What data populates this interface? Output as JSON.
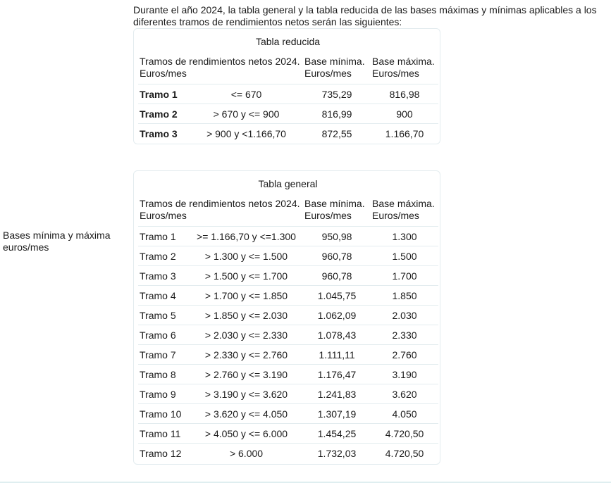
{
  "side_label": "Bases mínima y máxima euros/mes",
  "intro": "Durante el año 2024, la tabla general y la tabla reducida de las bases máximas y mínimas aplicables a los diferentes tramos de rendimientos netos serán las siguientes:",
  "headers": {
    "tramos": "Tramos de rendimientos netos 2024. Euros/mes",
    "min": "Base mínima. Euros/mes",
    "max": "Base máxima. Euros/mes"
  },
  "reducida": {
    "title": "Tabla reducida",
    "rows": [
      {
        "tramo": "Tramo 1",
        "range": "<= 670",
        "min": "735,29",
        "max": "816,98"
      },
      {
        "tramo": "Tramo 2",
        "range": "> 670 y <= 900",
        "min": "816,99",
        "max": "900"
      },
      {
        "tramo": "Tramo 3",
        "range": "> 900 y <1.166,70",
        "min": "872,55",
        "max": "1.166,70"
      }
    ]
  },
  "general": {
    "title": "Tabla general",
    "rows": [
      {
        "tramo": "Tramo 1",
        "range": ">= 1.166,70 y <=1.300",
        "min": "950,98",
        "max": "1.300"
      },
      {
        "tramo": "Tramo 2",
        "range": "> 1.300 y <= 1.500",
        "min": "960,78",
        "max": "1.500"
      },
      {
        "tramo": "Tramo 3",
        "range": "> 1.500 y <= 1.700",
        "min": "960,78",
        "max": "1.700"
      },
      {
        "tramo": "Tramo 4",
        "range": "> 1.700 y <= 1.850",
        "min": "1.045,75",
        "max": "1.850"
      },
      {
        "tramo": "Tramo 5",
        "range": "> 1.850 y <= 2.030",
        "min": "1.062,09",
        "max": "2.030"
      },
      {
        "tramo": "Tramo 6",
        "range": "> 2.030 y <= 2.330",
        "min": "1.078,43",
        "max": "2.330"
      },
      {
        "tramo": "Tramo 7",
        "range": "> 2.330 y <= 2.760",
        "min": "1.111,11",
        "max": "2.760"
      },
      {
        "tramo": "Tramo 8",
        "range": "> 2.760 y <= 3.190",
        "min": "1.176,47",
        "max": "3.190"
      },
      {
        "tramo": "Tramo 9",
        "range": "> 3.190 y <= 3.620",
        "min": "1.241,83",
        "max": "3.620"
      },
      {
        "tramo": "Tramo 10",
        "range": "> 3.620 y <= 4.050",
        "min": "1.307,19",
        "max": "4.050"
      },
      {
        "tramo": "Tramo 11",
        "range": "> 4.050 y <= 6.000",
        "min": "1.454,25",
        "max": "4.720,50"
      },
      {
        "tramo": "Tramo 12",
        "range": "> 6.000",
        "min": "1.732,03",
        "max": "4.720,50"
      }
    ]
  }
}
